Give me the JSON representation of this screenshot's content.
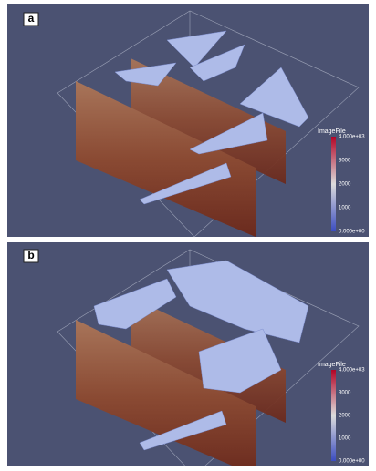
{
  "panels": [
    {
      "label": "a",
      "colorbar": {
        "title": "ImageFile",
        "ticks": [
          "4.000e+03",
          "3000",
          "2000",
          "1000",
          "0.000e+00"
        ]
      }
    },
    {
      "label": "b",
      "colorbar": {
        "title": "ImageFile",
        "ticks": [
          "4.000e+03",
          "3000",
          "2000",
          "1000",
          "0.000e+00"
        ]
      }
    }
  ]
}
